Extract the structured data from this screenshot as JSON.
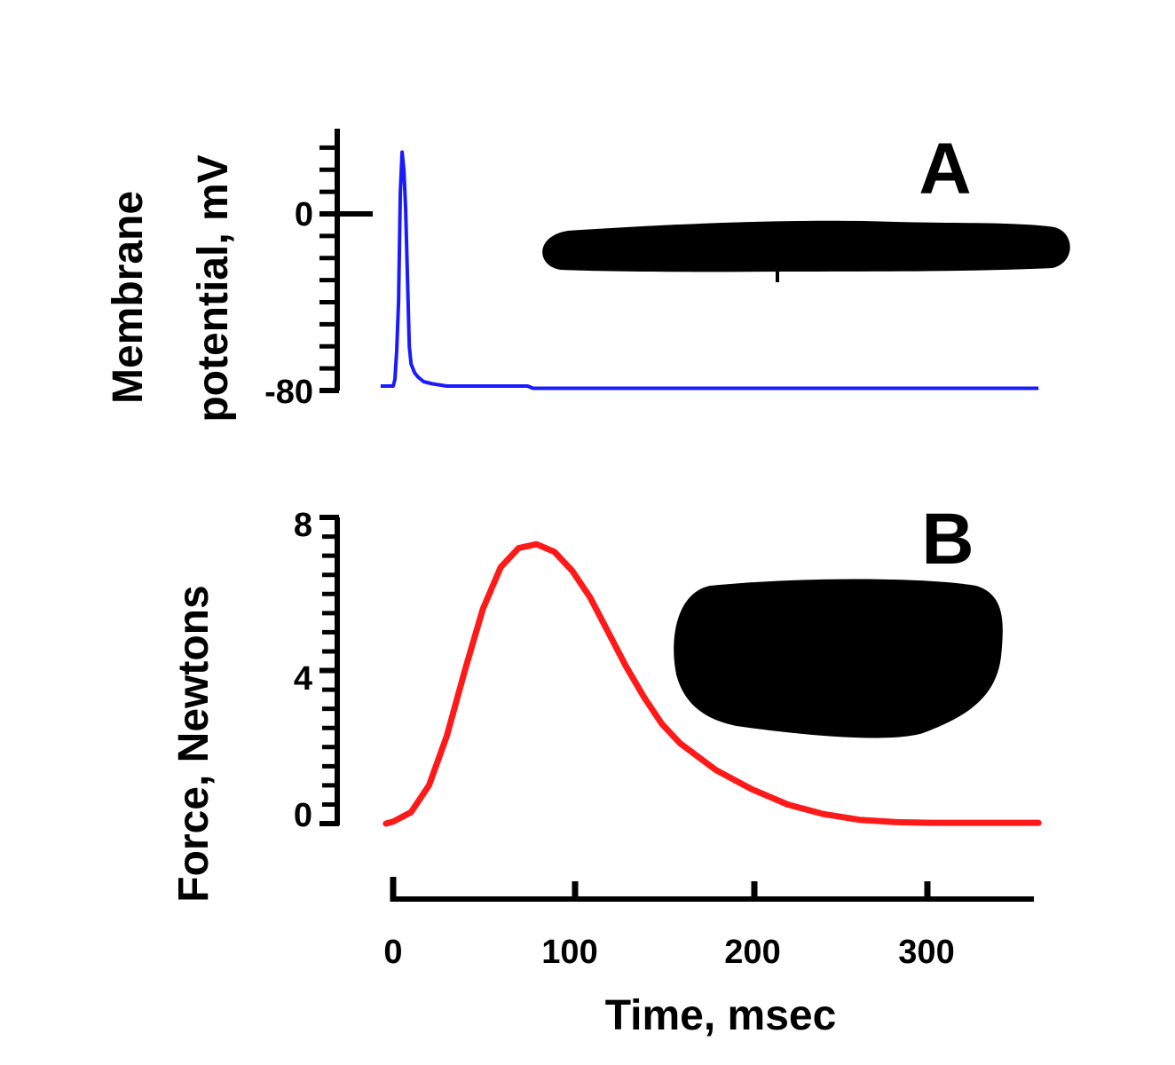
{
  "chart_data": [
    {
      "panel": "A",
      "type": "line",
      "ylabel_line1": "Membrane",
      "ylabel_line2": "potential, mV",
      "xlim": [
        0,
        360
      ],
      "ylim": [
        -80,
        36
      ],
      "y_ticks": [
        {
          "value": 0,
          "label": "0"
        },
        {
          "value": -80,
          "label": "-80"
        }
      ],
      "series": [
        {
          "color": "#1a1aff",
          "x": [
            -7,
            0,
            1,
            2,
            3,
            4,
            5,
            6,
            7,
            8,
            9,
            10,
            12,
            14,
            17,
            22,
            30,
            45,
            60,
            75,
            78,
            360
          ],
          "y": [
            -78,
            -78,
            -75,
            -62,
            -40,
            10,
            28,
            20,
            2,
            -30,
            -60,
            -68,
            -72,
            -74,
            -76,
            -77,
            -78,
            -78,
            -78,
            -78,
            -79,
            -79
          ]
        }
      ],
      "redaction_color": "#000000"
    },
    {
      "panel": "B",
      "type": "line",
      "ylabel": "Force, Newtons",
      "xlabel": "Time, msec",
      "xlim": [
        0,
        360
      ],
      "ylim": [
        0,
        8
      ],
      "y_ticks": [
        {
          "value": 0,
          "label": "0"
        },
        {
          "value": 4,
          "label": "4"
        },
        {
          "value": 8,
          "label": "8"
        }
      ],
      "x_ticks": [
        {
          "value": 0,
          "label": "0"
        },
        {
          "value": 100,
          "label": "100"
        },
        {
          "value": 200,
          "label": "200"
        },
        {
          "value": 300,
          "label": "300"
        }
      ],
      "series": [
        {
          "color": "#ff1a1a",
          "x": [
            -4,
            0,
            10,
            20,
            30,
            40,
            50,
            60,
            70,
            80,
            90,
            100,
            110,
            120,
            130,
            140,
            150,
            160,
            180,
            200,
            220,
            240,
            260,
            280,
            300,
            320,
            340,
            360
          ],
          "y": [
            0.0,
            0.05,
            0.3,
            1.0,
            2.3,
            4.0,
            5.6,
            6.7,
            7.2,
            7.3,
            7.1,
            6.6,
            5.9,
            5.0,
            4.1,
            3.3,
            2.6,
            2.1,
            1.4,
            0.9,
            0.5,
            0.25,
            0.1,
            0.04,
            0.02,
            0.02,
            0.02,
            0.02
          ]
        }
      ],
      "redaction_color": "#000000"
    }
  ]
}
